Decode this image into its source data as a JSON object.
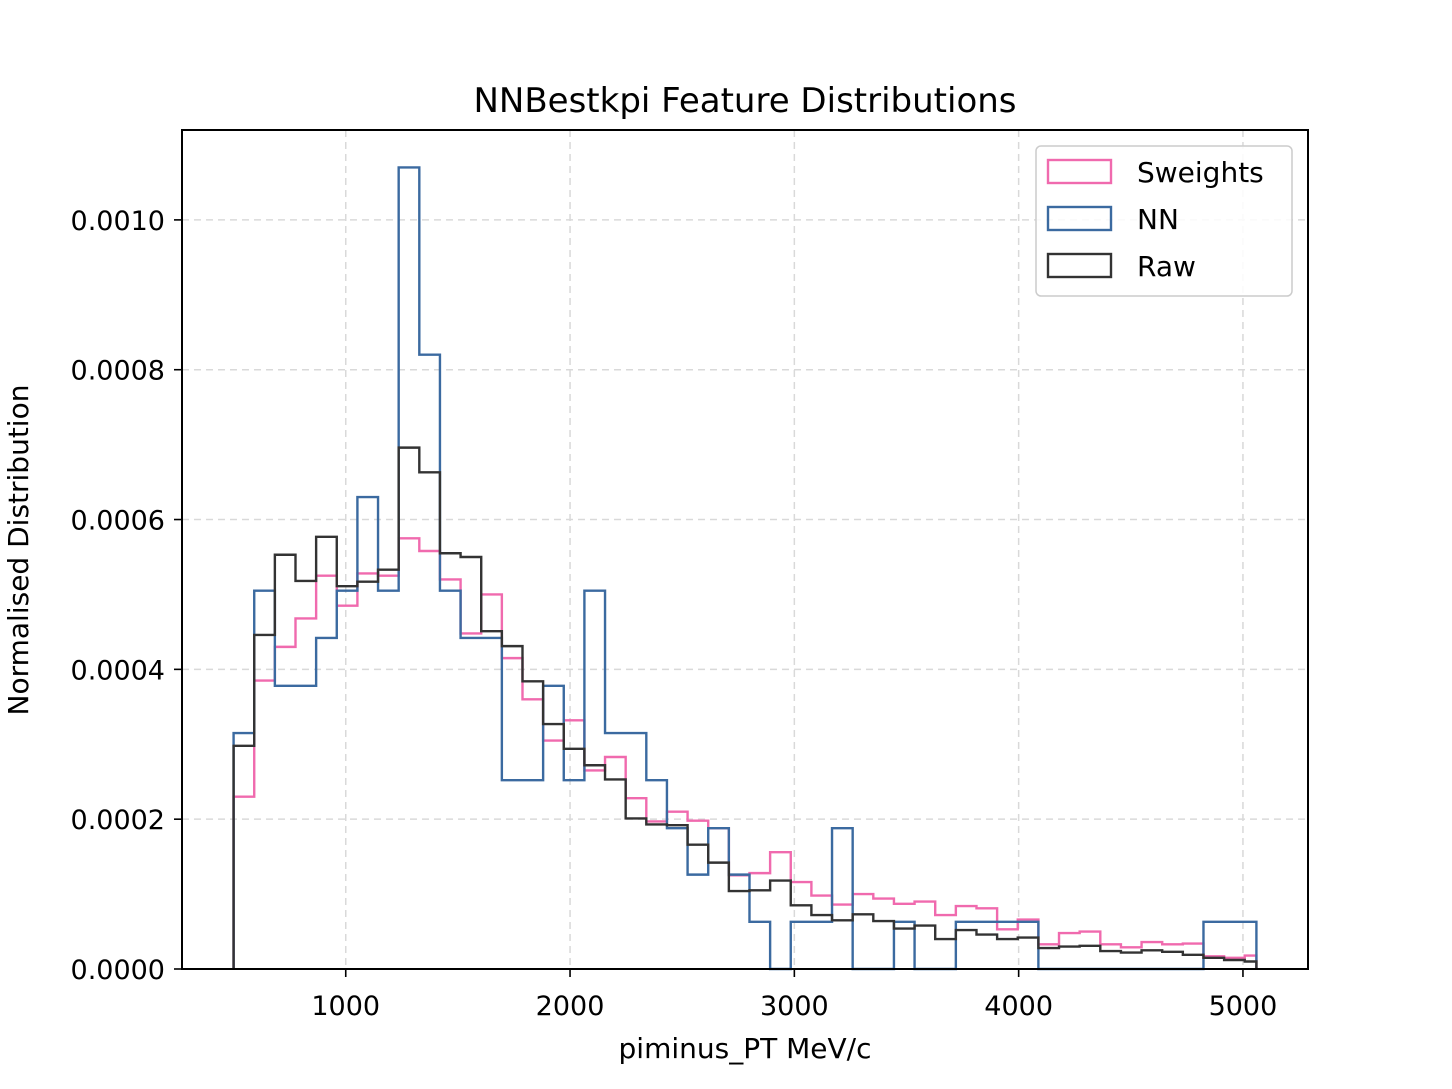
{
  "chart_data": {
    "type": "histogram",
    "title": "NNBestkpi Feature Distributions",
    "xlabel": "piminus_PT MeV/c",
    "ylabel": "Normalised Distribution",
    "xlim": [
      270,
      5290
    ],
    "ylim": [
      0,
      0.00112
    ],
    "xticks": [
      1000,
      2000,
      3000,
      4000,
      5000
    ],
    "xtick_labels": [
      "1000",
      "2000",
      "3000",
      "4000",
      "5000"
    ],
    "yticks": [
      0,
      0.0002,
      0.0004,
      0.0006,
      0.0008,
      0.001
    ],
    "ytick_labels": [
      "0.0000",
      "0.0002",
      "0.0004",
      "0.0006",
      "0.0008",
      "0.0010"
    ],
    "grid": true,
    "legend_position": "top-right",
    "bin_edges": [
      500,
      592,
      684,
      776,
      868,
      960,
      1052,
      1144,
      1236,
      1328,
      1420,
      1512,
      1604,
      1696,
      1788,
      1880,
      1972,
      2064,
      2156,
      2248,
      2340,
      2432,
      2524,
      2616,
      2708,
      2800,
      2892,
      2984,
      3076,
      3168,
      3260,
      3352,
      3444,
      3536,
      3628,
      3720,
      3812,
      3904,
      3996,
      4088,
      4180,
      4272,
      4364,
      4456,
      4548,
      4640,
      4732,
      4824,
      4916,
      5008,
      5060
    ],
    "series": [
      {
        "name": "Sweights",
        "color": "#f06aae",
        "values": [
          0.00023,
          0.000385,
          0.00043,
          0.000468,
          0.000525,
          0.000485,
          0.000528,
          0.000525,
          0.000575,
          0.000558,
          0.00052,
          0.000448,
          0.0005,
          0.000415,
          0.00036,
          0.000305,
          0.000332,
          0.000265,
          0.000283,
          0.000228,
          0.000197,
          0.00021,
          0.000198,
          0.000188,
          0.000125,
          0.000128,
          0.000156,
          0.000116,
          9.8e-05,
          8.6e-05,
          0.0001,
          9.4e-05,
          8.7e-05,
          9e-05,
          7.2e-05,
          8.4e-05,
          8.1e-05,
          5.3e-05,
          6.6e-05,
          3.3e-05,
          4.8e-05,
          5e-05,
          3.3e-05,
          2.9e-05,
          3.6e-05,
          3.3e-05,
          3.4e-05,
          1.7e-05,
          1.5e-05,
          1.8e-05
        ]
      },
      {
        "name": "NN",
        "color": "#3b6aa0",
        "values": [
          0.000315,
          0.000505,
          0.000378,
          0.000378,
          0.000442,
          0.000505,
          0.00063,
          0.000505,
          0.00107,
          0.00082,
          0.000505,
          0.000442,
          0.000442,
          0.000252,
          0.000252,
          0.000378,
          0.000252,
          0.000505,
          0.000315,
          0.000315,
          0.000252,
          0.000188,
          0.000126,
          0.000188,
          0.000126,
          6.3e-05,
          0.0,
          6.3e-05,
          6.3e-05,
          0.000188,
          0.0,
          0.0,
          6.3e-05,
          0.0,
          0.0,
          6.3e-05,
          6.3e-05,
          6.3e-05,
          6.3e-05,
          0.0,
          0.0,
          0.0,
          0.0,
          0.0,
          0.0,
          0.0,
          0.0,
          6.3e-05,
          6.3e-05,
          6.3e-05
        ]
      },
      {
        "name": "Raw",
        "color": "#333333",
        "values": [
          0.000298,
          0.000446,
          0.000553,
          0.000518,
          0.000577,
          0.000511,
          0.000517,
          0.000533,
          0.000696,
          0.000663,
          0.000555,
          0.00055,
          0.000451,
          0.000431,
          0.000384,
          0.000327,
          0.000294,
          0.000272,
          0.000253,
          0.000201,
          0.000193,
          0.000192,
          0.000166,
          0.000142,
          0.000104,
          0.000105,
          0.000118,
          8.5e-05,
          7.2e-05,
          6.5e-05,
          7.3e-05,
          6.4e-05,
          5.4e-05,
          5.8e-05,
          4e-05,
          5.2e-05,
          4.6e-05,
          4e-05,
          4.2e-05,
          2.8e-05,
          3e-05,
          3.1e-05,
          2.4e-05,
          2.2e-05,
          2.5e-05,
          2.3e-05,
          1.9e-05,
          1.5e-05,
          1.2e-05,
          1e-05
        ]
      }
    ]
  }
}
